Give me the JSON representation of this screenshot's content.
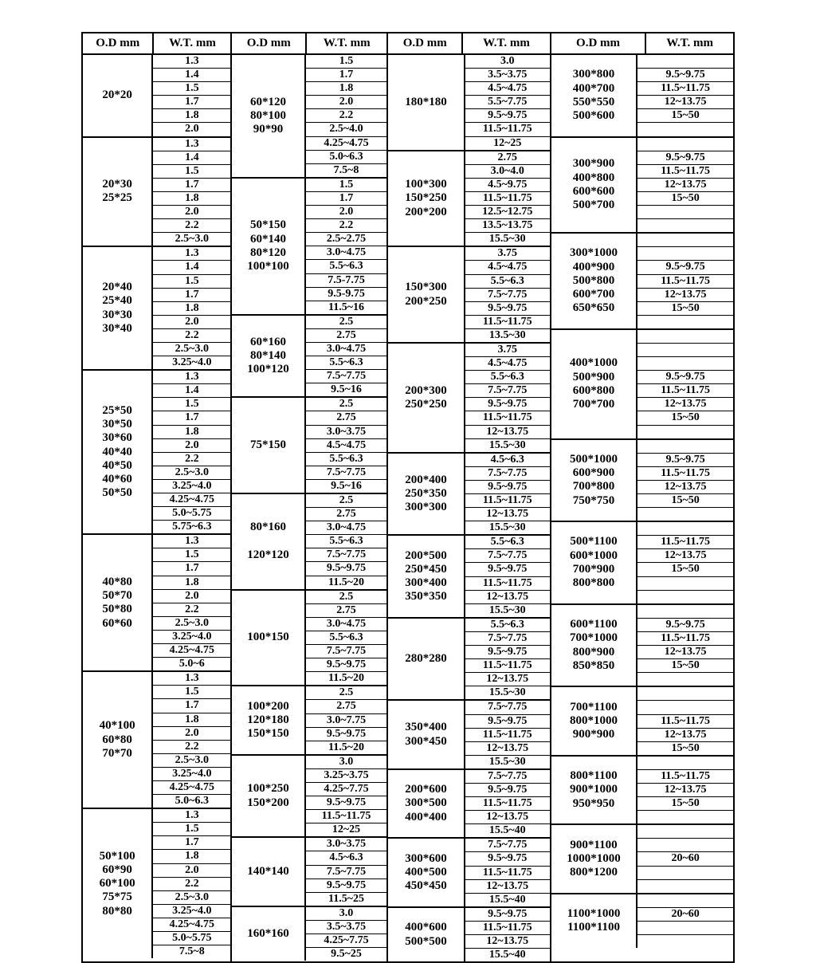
{
  "headers": [
    "O.D mm",
    "W.T. mm",
    "O.D mm",
    "W.T. mm",
    "O.D mm",
    "W.T. mm",
    "O.D mm",
    "W.T. mm"
  ],
  "colors": {
    "border": "#000000",
    "background": "#ffffff",
    "text": "#000000"
  },
  "typography": {
    "family": "Times New Roman",
    "weight": "bold",
    "base_size_pt": 11
  },
  "column_groups": {
    "col1": {
      "blocks": [
        {
          "od": [
            "20*20"
          ],
          "wt": [
            "1.3",
            "1.4",
            "1.5",
            "1.7",
            "1.8",
            "2.0"
          ]
        },
        {
          "od": [
            "20*30",
            "25*25"
          ],
          "wt": [
            "1.3",
            "1.4",
            "1.5",
            "1.7",
            "1.8",
            "2.0",
            "2.2",
            "2.5~3.0"
          ]
        },
        {
          "od": [
            "20*40",
            "25*40",
            "30*30",
            "30*40"
          ],
          "wt": [
            "1.3",
            "1.4",
            "1.5",
            "1.7",
            "1.8",
            "2.0",
            "2.2",
            "2.5~3.0",
            "3.25~4.0"
          ]
        },
        {
          "od": [
            "25*50",
            "30*50",
            "30*60",
            "40*40",
            "40*50",
            "40*60",
            "50*50"
          ],
          "wt": [
            "1.3",
            "1.4",
            "1.5",
            "1.7",
            "1.8",
            "2.0",
            "2.2",
            "2.5~3.0",
            "3.25~4.0",
            "4.25~4.75",
            "5.0~5.75",
            "5.75~6.3"
          ]
        },
        {
          "od": [
            "40*80",
            "50*70",
            "50*80",
            "60*60"
          ],
          "wt": [
            "1.3",
            "1.5",
            "1.7",
            "1.8",
            "2.0",
            "2.2",
            "2.5~3.0",
            "3.25~4.0",
            "4.25~4.75",
            "5.0~6"
          ]
        },
        {
          "od": [
            "40*100",
            "60*80",
            "70*70"
          ],
          "wt": [
            "1.3",
            "1.5",
            "1.7",
            "1.8",
            "2.0",
            "2.2",
            "2.5~3.0",
            "3.25~4.0",
            "4.25~4.75",
            "5.0~6.3"
          ]
        },
        {
          "od": [
            "50*100",
            "60*90",
            "60*100",
            "75*75",
            "80*80"
          ],
          "wt": [
            "1.3",
            "1.5",
            "1.7",
            "1.8",
            "2.0",
            "2.2",
            "2.5~3.0",
            "3.25~4.0",
            "4.25~4.75",
            "5.0~5.75",
            "7.5~8"
          ]
        }
      ]
    },
    "col2": {
      "blocks": [
        {
          "od": [
            "60*120",
            "80*100",
            "90*90"
          ],
          "wt": [
            "1.5",
            "1.7",
            "1.8",
            "2.0",
            "2.2",
            "2.5~4.0",
            "4.25~4.75",
            "5.0~6.3",
            "7.5~8"
          ],
          "od_align": "bottom"
        },
        {
          "od": [
            "50*150",
            "60*140",
            "80*120",
            "100*100"
          ],
          "wt": [
            "1.5",
            "1.7",
            "2.0",
            "2.2",
            "2.5~2.75",
            "3.0~4.75",
            "5.5~6.3",
            "7.5-7.75",
            "9.5-9.75",
            "11.5~16"
          ],
          "od_align": "bottom"
        },
        {
          "od": [
            "60*160",
            "80*140",
            "100*120"
          ],
          "wt": [
            "2.5",
            "2.75",
            "3.0~4.75",
            "5.5~6.3",
            "7.5~7.75",
            "9.5~16"
          ],
          "od_align": "bottom"
        },
        {
          "od": [
            "75*150"
          ],
          "wt": [
            "2.5",
            "2.75",
            "3.0~3.75",
            "4.5~4.75",
            "5.5~6.3",
            "7.5~7.75",
            "9.5~16"
          ]
        },
        {
          "od": [
            "80*160",
            "",
            "120*120"
          ],
          "wt": [
            "2.5",
            "2.75",
            "3.0~4.75",
            "5.5~6.3",
            "7.5~7.75",
            "9.5~9.75",
            "11.5~20"
          ],
          "od_align": "bottom"
        },
        {
          "od": [
            "100*150"
          ],
          "wt": [
            "2.5",
            "2.75",
            "3.0~4.75",
            "5.5~6.3",
            "7.5~7.75",
            "9.5~9.75",
            "11.5~20"
          ]
        },
        {
          "od": [
            "100*200",
            "120*180",
            "150*150"
          ],
          "wt": [
            "2.5",
            "2.75",
            "3.0~7.75",
            "9.5~9.75",
            "11.5~20"
          ]
        },
        {
          "od": [
            "100*250",
            "150*200"
          ],
          "wt": [
            "3.0",
            "3.25~3.75",
            "4.25~7.75",
            "9.5~9.75",
            "11.5~11.75",
            "12~25"
          ]
        },
        {
          "od": [
            "140*140"
          ],
          "wt": [
            "3.0~3.75",
            "4.5~6.3",
            "7.5~7.75",
            "9.5~9.75",
            "11.5~25"
          ]
        },
        {
          "od": [
            "160*160"
          ],
          "wt": [
            "3.0",
            "3.5~3.75",
            "4.25~7.75",
            "9.5~25"
          ]
        }
      ]
    },
    "col3": {
      "blocks": [
        {
          "od": [
            "180*180"
          ],
          "wt": [
            "3.0",
            "3.5~3.75",
            "4.5~4.75",
            "5.5~7.75",
            "9.5~9.75",
            "11.5~11.75",
            "12~25"
          ]
        },
        {
          "od": [
            "100*300",
            "150*250",
            "200*200"
          ],
          "wt": [
            "2.75",
            "3.0~4.0",
            "4.5~9.75",
            "11.5~11.75",
            "12.5~12.75",
            "13.5~13.75",
            "15.5~30"
          ]
        },
        {
          "od": [
            "150*300",
            "200*250"
          ],
          "wt": [
            "3.75",
            "4.5~4.75",
            "5.5~6.3",
            "7.5~7.75",
            "9.5~9.75",
            "11.5~11.75",
            "13.5~30"
          ]
        },
        {
          "od": [
            "200*300",
            "250*250"
          ],
          "wt": [
            "3.75",
            "4.5~4.75",
            "5.5~6.3",
            "7.5~7.75",
            "9.5~9.75",
            "11.5~11.75",
            "12~13.75",
            "15.5~30"
          ]
        },
        {
          "od": [
            "200*400",
            "250*350",
            "300*300"
          ],
          "wt": [
            "4.5~6.3",
            "7.5~7.75",
            "9.5~9.75",
            "11.5~11.75",
            "12~13.75",
            "15.5~30"
          ]
        },
        {
          "od": [
            "200*500",
            "250*450",
            "300*400",
            "350*350"
          ],
          "wt": [
            "5.5~6.3",
            "7.5~7.75",
            "9.5~9.75",
            "11.5~11.75",
            "12~13.75",
            "15.5~30"
          ]
        },
        {
          "od": [
            "280*280"
          ],
          "wt": [
            "5.5~6.3",
            "7.5~7.75",
            "9.5~9.75",
            "11.5~11.75",
            "12~13.75",
            "15.5~30"
          ]
        },
        {
          "od": [
            "350*400",
            "300*450"
          ],
          "wt": [
            "7.5~7.75",
            "9.5~9.75",
            "11.5~11.75",
            "12~13.75",
            "15.5~30"
          ],
          "od_align": "bottom"
        },
        {
          "od": [
            "200*600",
            "300*500",
            "400*400"
          ],
          "wt": [
            "7.5~7.75",
            "9.5~9.75",
            "11.5~11.75",
            "12~13.75",
            "15.5~40"
          ]
        },
        {
          "od": [
            "300*600",
            "400*500",
            "450*450"
          ],
          "wt": [
            "7.5~7.75",
            "9.5~9.75",
            "11.5~11.75",
            "12~13.75",
            "15.5~40"
          ]
        },
        {
          "od": [
            "400*600",
            "500*500"
          ],
          "wt": [
            "9.5~9.75",
            "11.5~11.75",
            "12~13.75",
            "15.5~40"
          ]
        }
      ]
    },
    "col4": {
      "blocks": [
        {
          "od": [
            "300*800",
            "400*700",
            "550*550",
            "500*600"
          ],
          "wt": [
            "",
            "9.5~9.75",
            "11.5~11.75",
            "12~13.75",
            "15~50",
            ""
          ],
          "od_align": "top"
        },
        {
          "od": [
            "300*900",
            "400*800",
            "600*600",
            "500*700"
          ],
          "wt": [
            "",
            "9.5~9.75",
            "11.5~11.75",
            "12~13.75",
            "15~50",
            "",
            ""
          ]
        },
        {
          "od": [
            "300*1000",
            "400*900",
            "500*800",
            "600*700",
            "650*650"
          ],
          "wt": [
            "",
            "",
            "9.5~9.75",
            "11.5~11.75",
            "12~13.75",
            "15~50",
            ""
          ]
        },
        {
          "od": [
            "400*1000",
            "500*900",
            "600*800",
            "700*700"
          ],
          "wt": [
            "",
            "",
            "",
            "9.5~9.75",
            "11.5~11.75",
            "12~13.75",
            "15~50",
            ""
          ]
        },
        {
          "od": [
            "500*1000",
            "600*900",
            "700*800",
            "750*750"
          ],
          "wt": [
            "",
            "9.5~9.75",
            "11.5~11.75",
            "12~13.75",
            "15~50",
            ""
          ]
        },
        {
          "od": [
            "500*1100",
            "600*1000",
            "700*900",
            "800*800"
          ],
          "wt": [
            "",
            "11.5~11.75",
            "12~13.75",
            "15~50",
            "",
            ""
          ]
        },
        {
          "od": [
            "600*1100",
            "700*1000",
            "800*900",
            "850*850"
          ],
          "wt": [
            "",
            "9.5~9.75",
            "11.5~11.75",
            "12~13.75",
            "15~50",
            ""
          ]
        },
        {
          "od": [
            "700*1100",
            "800*1000",
            "900*900"
          ],
          "wt": [
            "",
            "",
            "11.5~11.75",
            "12~13.75",
            "15~50"
          ]
        },
        {
          "od": [
            "800*1100",
            "900*1000",
            "950*950"
          ],
          "wt": [
            "",
            "11.5~11.75",
            "12~13.75",
            "15~50",
            ""
          ]
        },
        {
          "od": [
            "900*1100",
            "1000*1000",
            "800*1200"
          ],
          "wt": [
            "",
            "",
            "20~60",
            "",
            ""
          ]
        },
        {
          "od": [
            "1100*1000",
            "1100*1100"
          ],
          "wt": [
            "",
            "20~60",
            "",
            ""
          ]
        }
      ]
    }
  }
}
